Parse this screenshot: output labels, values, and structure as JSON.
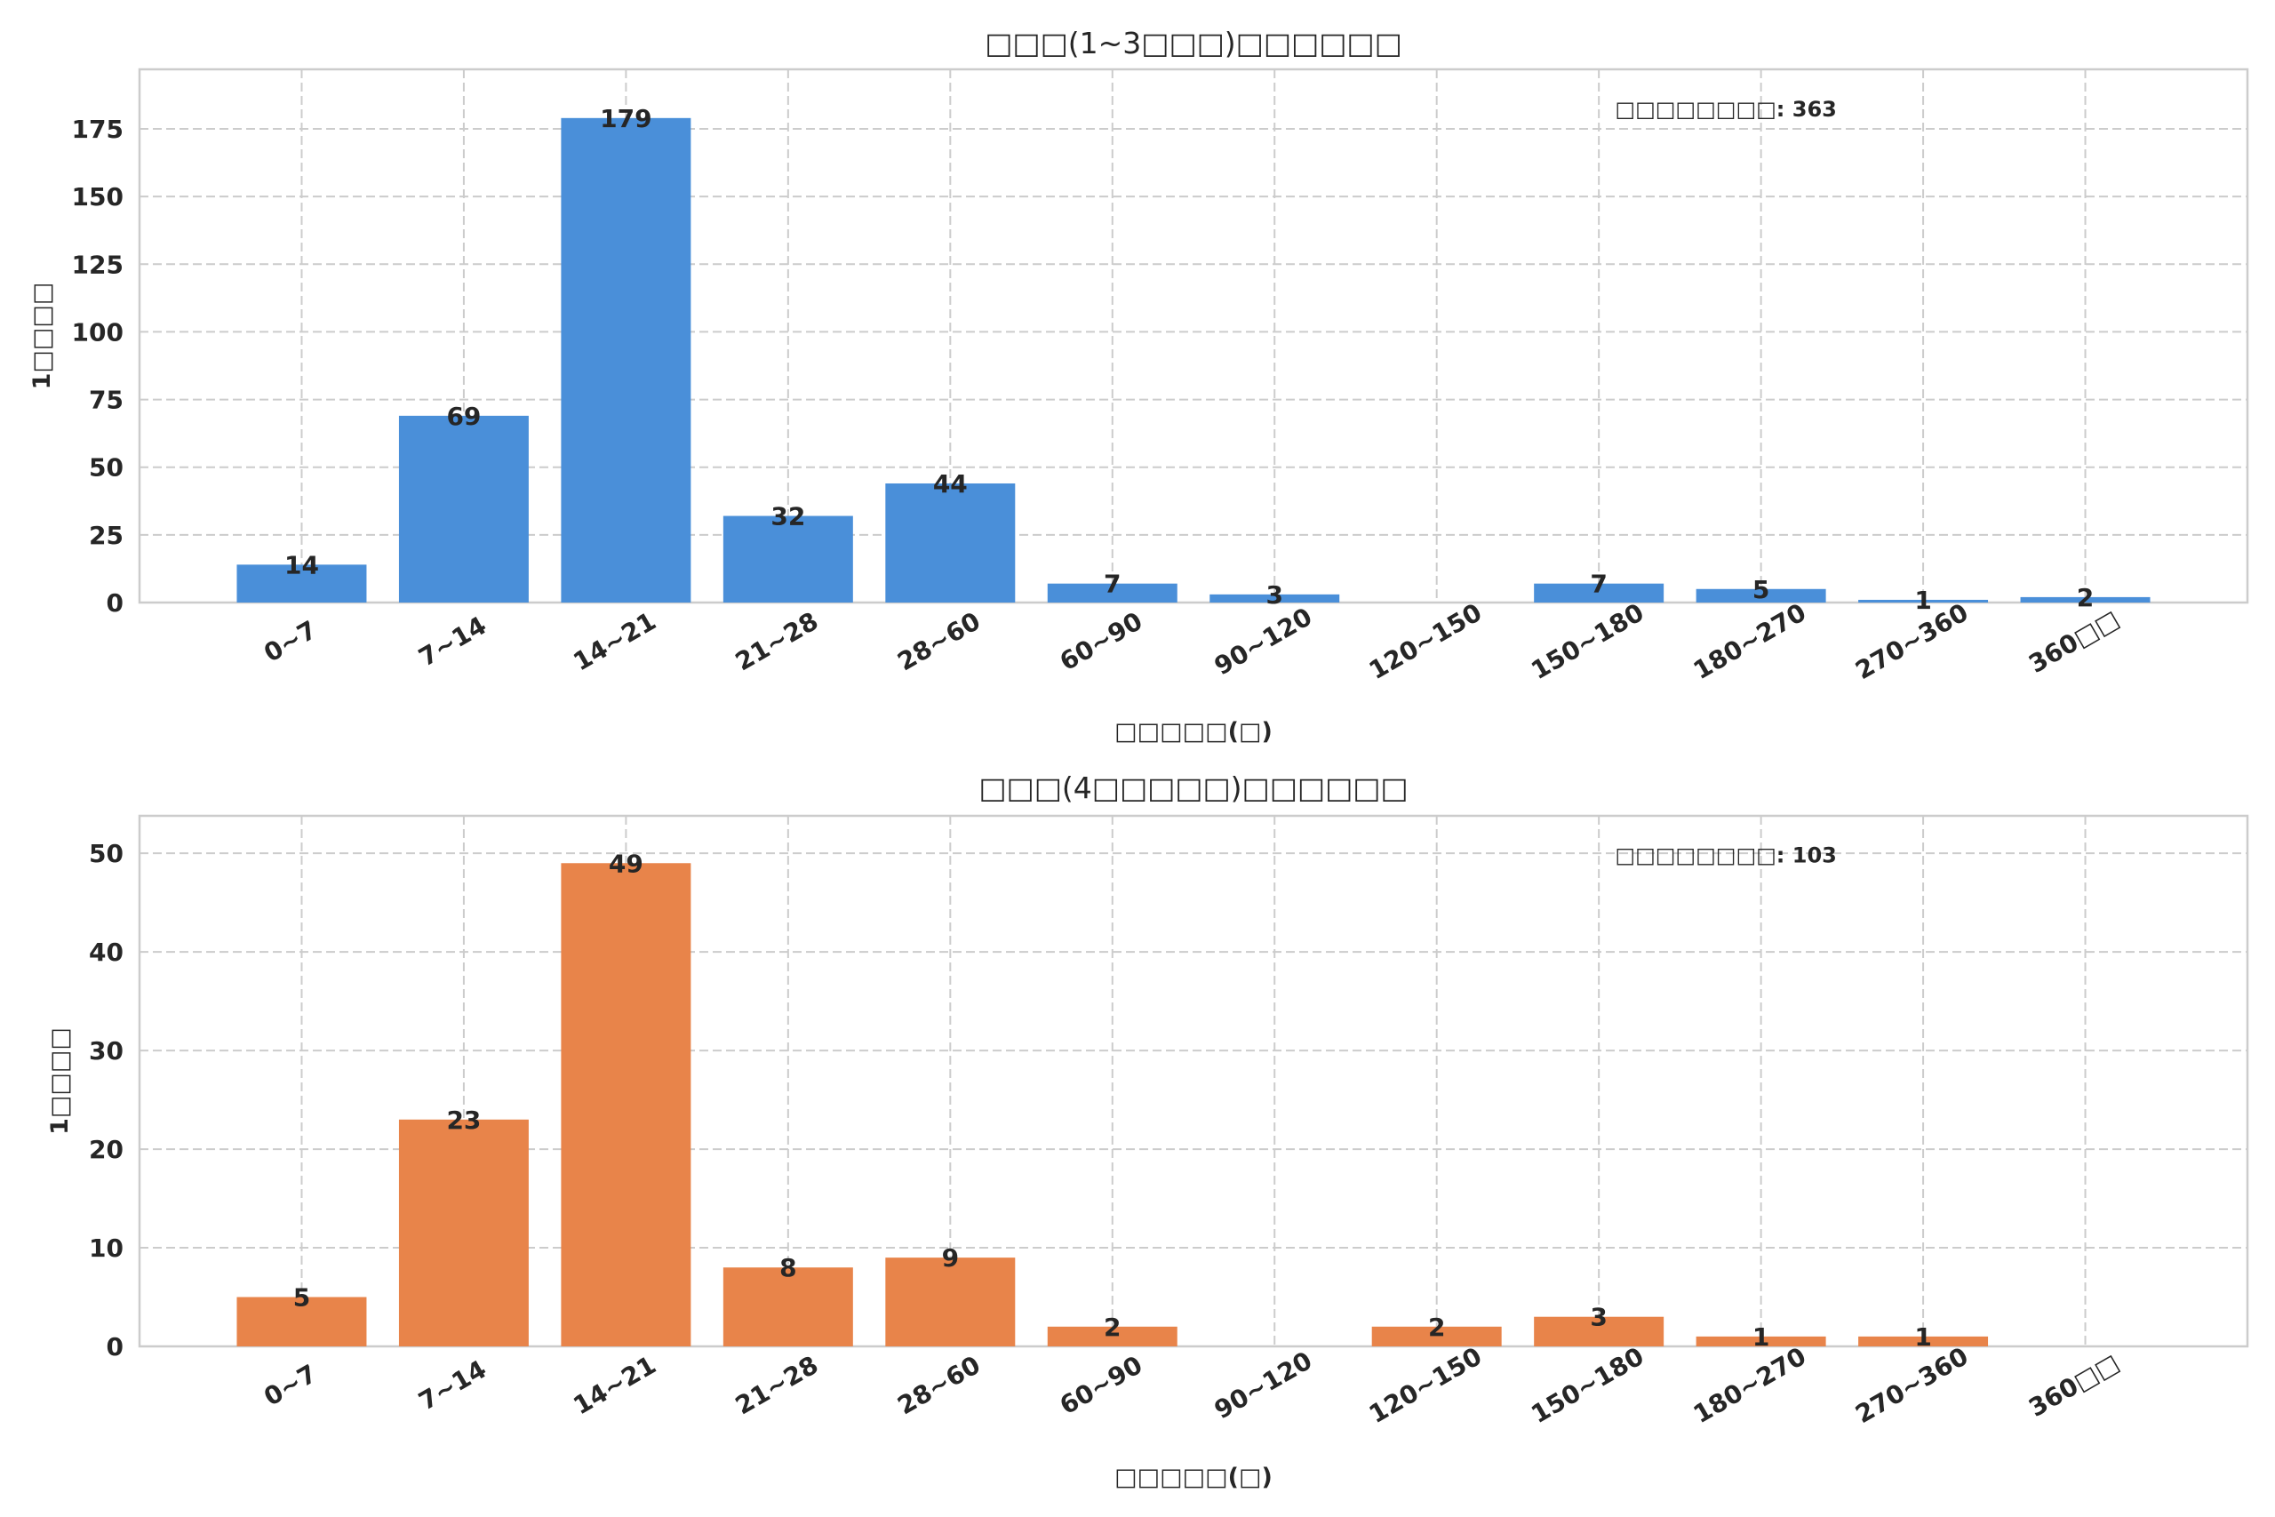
{
  "chart_data": [
    {
      "type": "bar",
      "title": "□□□(1~3□□□)□□□□□□",
      "xlabel": "□□□□□(□)",
      "ylabel": "1□□□□",
      "categories": [
        "0~7",
        "7~14",
        "14~21",
        "21~28",
        "28~60",
        "60~90",
        "90~120",
        "120~150",
        "150~180",
        "180~270",
        "270~360",
        "360□□"
      ],
      "values": [
        14,
        69,
        179,
        32,
        44,
        7,
        3,
        0,
        7,
        5,
        1,
        2
      ],
      "value_labels": [
        "14",
        "69",
        "179",
        "32",
        "44",
        "7",
        "3",
        "",
        "7",
        "5",
        "1",
        "2"
      ],
      "ylim": [
        0,
        197
      ],
      "yticks": [
        0,
        25,
        50,
        75,
        100,
        125,
        150,
        175
      ],
      "annotation": "□□□□□□□□: 363",
      "color": "#4a8fd9",
      "grid": true
    },
    {
      "type": "bar",
      "title": "□□□(4□□□□□)□□□□□□",
      "xlabel": "□□□□□(□)",
      "ylabel": "1□□□□",
      "categories": [
        "0~7",
        "7~14",
        "14~21",
        "21~28",
        "28~60",
        "60~90",
        "90~120",
        "120~150",
        "150~180",
        "180~270",
        "270~360",
        "360□□"
      ],
      "values": [
        5,
        23,
        49,
        8,
        9,
        2,
        0,
        2,
        3,
        1,
        1,
        0
      ],
      "value_labels": [
        "5",
        "23",
        "49",
        "8",
        "9",
        "2",
        "",
        "2",
        "3",
        "1",
        "1",
        ""
      ],
      "ylim": [
        0,
        53.8
      ],
      "yticks": [
        0,
        10,
        20,
        30,
        40,
        50
      ],
      "annotation": "□□□□□□□□: 103",
      "color": "#e8844a",
      "grid": true
    }
  ]
}
